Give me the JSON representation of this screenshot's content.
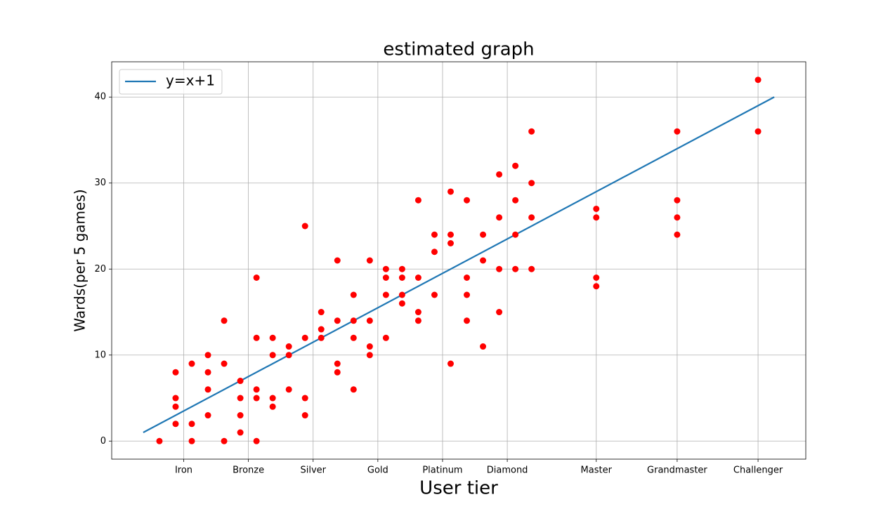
{
  "chart_data": {
    "type": "scatter",
    "title": "estimated graph",
    "x_label": "User tier",
    "y_label": "Wards(per 5 games)",
    "xlim": [
      -1.95,
      40.95
    ],
    "ylim": [
      -2.1,
      44.1
    ],
    "xticks": [
      {
        "value": 2.5,
        "label": "Iron"
      },
      {
        "value": 6.5,
        "label": "Bronze"
      },
      {
        "value": 10.5,
        "label": "Silver"
      },
      {
        "value": 14.5,
        "label": "Gold"
      },
      {
        "value": 18.5,
        "label": "Platinum"
      },
      {
        "value": 22.5,
        "label": "Diamond"
      },
      {
        "value": 28,
        "label": "Master"
      },
      {
        "value": 33,
        "label": "Grandmaster"
      },
      {
        "value": 38,
        "label": "Challenger"
      }
    ],
    "yticks": [
      0,
      10,
      20,
      30,
      40
    ],
    "grid": true,
    "legend": "upper left",
    "series": [
      {
        "name": "y=x+1",
        "type": "line",
        "color": "#1f77b4",
        "x": [
          0,
          39
        ],
        "y": [
          1,
          40
        ]
      },
      {
        "type": "scatter",
        "color": "#ff0000",
        "x": [
          1,
          2,
          2,
          2,
          2,
          3,
          3,
          3,
          4,
          4,
          4,
          4,
          5,
          5,
          5,
          6,
          6,
          6,
          6,
          7,
          7,
          7,
          7,
          7,
          8,
          8,
          8,
          8,
          9,
          9,
          9,
          10,
          10,
          10,
          10,
          11,
          11,
          11,
          12,
          12,
          12,
          12,
          13,
          13,
          13,
          13,
          14,
          14,
          14,
          14,
          15,
          15,
          15,
          15,
          16,
          16,
          16,
          16,
          17,
          17,
          17,
          17,
          18,
          18,
          18,
          19,
          19,
          19,
          19,
          20,
          20,
          20,
          20,
          21,
          21,
          21,
          22,
          22,
          22,
          22,
          23,
          23,
          23,
          23,
          24,
          24,
          24,
          24,
          28,
          28,
          28,
          28,
          33,
          33,
          33,
          33,
          38,
          38
        ],
        "y": [
          0,
          8,
          5,
          4,
          2,
          9,
          2,
          0,
          10,
          8,
          6,
          3,
          14,
          9,
          0,
          7,
          5,
          3,
          1,
          19,
          12,
          6,
          5,
          0,
          12,
          10,
          5,
          4,
          11,
          10,
          6,
          25,
          12,
          5,
          3,
          15,
          13,
          12,
          21,
          14,
          9,
          8,
          17,
          14,
          12,
          6,
          21,
          14,
          11,
          10,
          20,
          19,
          17,
          12,
          20,
          19,
          17,
          16,
          28,
          19,
          15,
          14,
          24,
          22,
          17,
          29,
          24,
          23,
          9,
          28,
          19,
          17,
          14,
          24,
          21,
          11,
          31,
          26,
          20,
          15,
          32,
          28,
          24,
          20,
          36,
          30,
          26,
          20,
          27,
          26,
          19,
          18,
          36,
          28,
          26,
          24,
          42,
          36
        ]
      }
    ]
  }
}
